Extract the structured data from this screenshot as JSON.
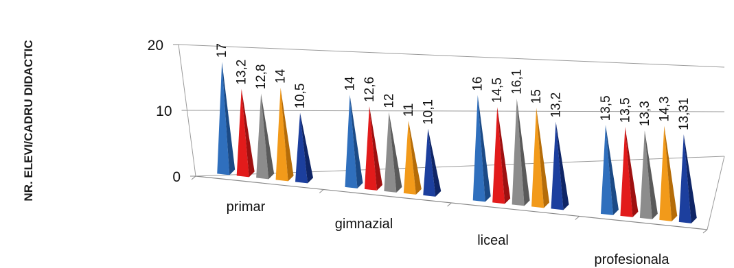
{
  "chart_data": {
    "type": "bar",
    "style": "3d-pyramid",
    "title": "",
    "xlabel": "",
    "ylabel": "NR. ELEVI/CADRU DIDACTIC",
    "categories": [
      "primar",
      "gimnazial",
      "liceal",
      "profesionala"
    ],
    "series": [
      {
        "values": [
          17,
          14,
          16,
          13.5
        ],
        "labels": [
          "17",
          "14",
          "16",
          "13,5"
        ]
      },
      {
        "values": [
          13.2,
          12.6,
          14.5,
          13.5
        ],
        "labels": [
          "13,2",
          "12,6",
          "14,5",
          "13,5"
        ]
      },
      {
        "values": [
          12.8,
          12,
          16.1,
          13.3
        ],
        "labels": [
          "12,8",
          "12",
          "16,1",
          "13,3"
        ]
      },
      {
        "values": [
          14,
          11,
          15,
          14.3
        ],
        "labels": [
          "14",
          "11",
          "15",
          "14,3"
        ]
      },
      {
        "values": [
          10.5,
          10.1,
          13.2,
          13.31
        ],
        "labels": [
          "10,5",
          "10,1",
          "13,2",
          "13,31"
        ]
      }
    ],
    "yticks": [
      "0",
      "10",
      "20"
    ],
    "ylim": [
      0,
      20
    ],
    "grid": true,
    "legend": "none",
    "colors": [
      "#2f6fbd",
      "#e21b1b",
      "#8c8c8c",
      "#f29a1a",
      "#1c3f9e"
    ],
    "dark_colors": [
      "#1b4a86",
      "#9e1010",
      "#5a5a5a",
      "#b56c08",
      "#0f2566"
    ]
  }
}
